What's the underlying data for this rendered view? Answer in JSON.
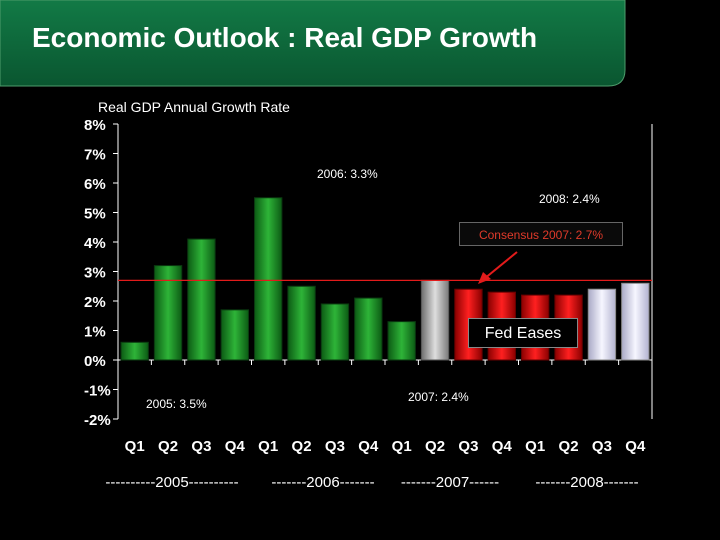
{
  "title": "Economic Outlook : Real GDP Growth",
  "colors": {
    "banner": "#0f6a3d",
    "green_bar": "#1f9a2a",
    "gray_bar": "#b9b9b9",
    "red_bar": "#e31212",
    "lavender_bar": "#e6e6f7",
    "consensus_line": "#e21b1b",
    "consensus_text": "#e03a2a",
    "text": "#ffffff"
  },
  "chart_data": {
    "type": "bar",
    "title": "Real GDP Annual Growth Rate",
    "ylim": [
      -2,
      8
    ],
    "yticks": [
      "8%",
      "7%",
      "6%",
      "5%",
      "4%",
      "3%",
      "2%",
      "1%",
      "0%",
      "-1%",
      "-2%"
    ],
    "ytick_values": [
      8,
      7,
      6,
      5,
      4,
      3,
      2,
      1,
      0,
      -1,
      -2
    ],
    "categories": [
      "Q1",
      "Q2",
      "Q3",
      "Q4",
      "Q1",
      "Q2",
      "Q3",
      "Q4",
      "Q1",
      "Q2",
      "Q3",
      "Q4",
      "Q1",
      "Q2",
      "Q3",
      "Q4"
    ],
    "years": [
      "----------2005----------",
      "-------2006-------",
      "-------2007------",
      "-------2008-------"
    ],
    "values": [
      0.6,
      3.2,
      4.1,
      1.7,
      5.5,
      2.5,
      1.9,
      2.1,
      1.3,
      2.7,
      2.4,
      2.3,
      2.2,
      2.2,
      2.4,
      2.6
    ],
    "bar_groups": [
      "green",
      "green",
      "green",
      "green",
      "green",
      "green",
      "green",
      "green",
      "green",
      "gray",
      "red",
      "red",
      "red",
      "red",
      "lavender",
      "lavender"
    ],
    "consensus_line_value": 2.7,
    "annotations": {
      "y2006": "2006: 3.3%",
      "y2008": "2008: 2.4%",
      "consensus": "Consensus 2007: 2.7%",
      "fed": "Fed Eases",
      "y2005": "2005: 3.5%",
      "y2007": "2007: 2.4%"
    }
  }
}
